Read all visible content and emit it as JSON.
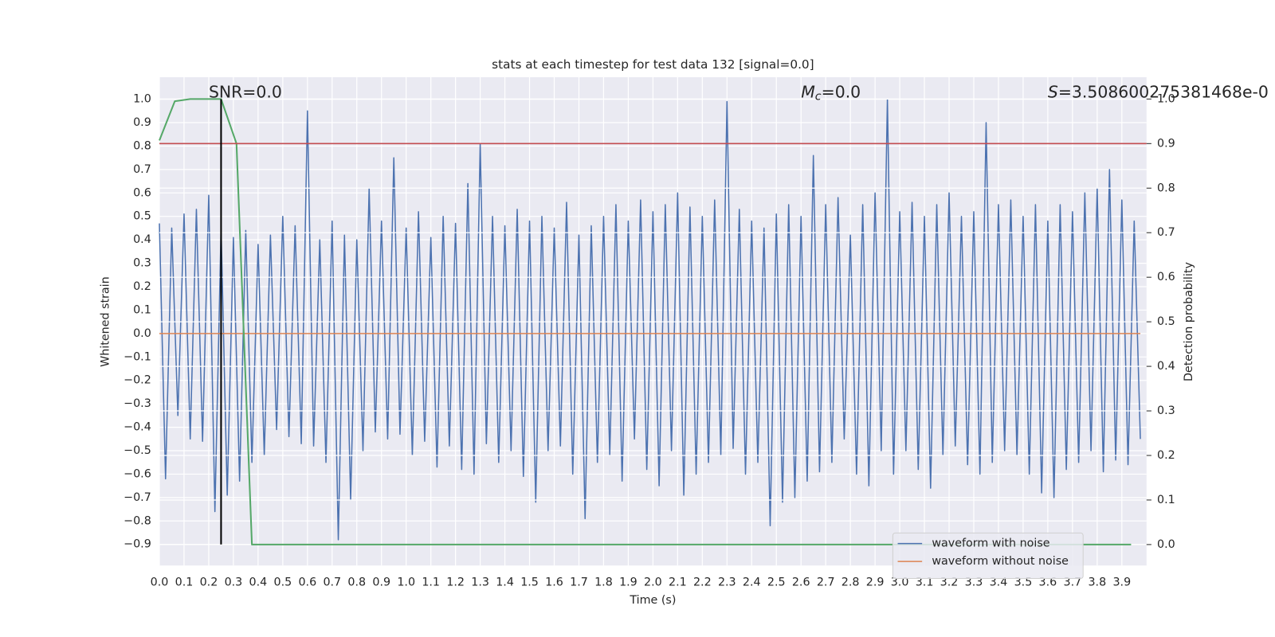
{
  "chart_data": {
    "type": "line",
    "title": "stats at each timestep for test data 132 [signal=0.0]",
    "x_label": "Time (s)",
    "y_label": "Whitened strain",
    "y2_label": "Detection probability",
    "xlim": [
      0,
      4.0
    ],
    "ylim": [
      -0.99,
      1.094
    ],
    "y2lim": [
      -0.047,
      1.049
    ],
    "grid": true,
    "legend": "lower right",
    "xticks": [
      {
        "value": 0,
        "label": "0.0"
      },
      0.1,
      0.2,
      0.3,
      0.4,
      0.5,
      0.6,
      0.7,
      0.8,
      0.9,
      {
        "value": 1,
        "label": "1.0"
      },
      1.1,
      1.2,
      1.3,
      1.4,
      1.5,
      1.6,
      1.7,
      1.8,
      1.9,
      {
        "value": 2,
        "label": "2.0"
      },
      2.1,
      2.2,
      2.3,
      2.4,
      2.5,
      2.6,
      2.7,
      2.8,
      2.9,
      {
        "value": 3,
        "label": "3.0"
      },
      3.1,
      3.2,
      3.3,
      3.4,
      3.5,
      3.6,
      3.7,
      3.8,
      3.9
    ],
    "yticks": [
      {
        "value": -0.9,
        "label": "−0.9"
      },
      {
        "value": -0.8,
        "label": "−0.8"
      },
      {
        "value": -0.7,
        "label": "−0.7"
      },
      {
        "value": -0.6,
        "label": "−0.6"
      },
      {
        "value": -0.5,
        "label": "−0.5"
      },
      {
        "value": -0.4,
        "label": "−0.4"
      },
      {
        "value": -0.3,
        "label": "−0.3"
      },
      {
        "value": -0.2,
        "label": "−0.2"
      },
      {
        "value": -0.1,
        "label": "−0.1"
      },
      {
        "value": 0,
        "label": "0.0"
      },
      0.1,
      0.2,
      0.3,
      0.4,
      0.5,
      0.6,
      0.7,
      0.8,
      0.9,
      {
        "value": 1,
        "label": "1.0"
      }
    ],
    "y2ticks": [
      {
        "value": 0,
        "label": "0.0"
      },
      0.1,
      0.2,
      0.3,
      0.4,
      0.5,
      0.6,
      0.7,
      0.8,
      0.9,
      {
        "value": 1,
        "label": "1.0"
      }
    ],
    "series": [
      {
        "name": "waveform with noise",
        "color": "#4c72b0",
        "x": [
          0,
          0.025,
          0.05,
          0.075,
          0.1,
          0.125,
          0.15,
          0.175,
          0.2,
          0.225,
          0.25,
          0.275,
          0.3,
          0.325,
          0.35,
          0.375,
          0.4,
          0.425,
          0.45,
          0.475,
          0.5,
          0.525,
          0.55,
          0.575,
          0.6,
          0.625,
          0.65,
          0.675,
          0.7,
          0.725,
          0.75,
          0.775,
          0.8,
          0.825,
          0.85,
          0.875,
          0.9,
          0.925,
          0.95,
          0.975,
          1.0,
          1.025,
          1.05,
          1.075,
          1.1,
          1.125,
          1.15,
          1.175,
          1.2,
          1.225,
          1.25,
          1.275,
          1.3,
          1.325,
          1.35,
          1.375,
          1.4,
          1.425,
          1.45,
          1.475,
          1.5,
          1.525,
          1.55,
          1.575,
          1.6,
          1.625,
          1.65,
          1.675,
          1.7,
          1.725,
          1.75,
          1.775,
          1.8,
          1.825,
          1.85,
          1.875,
          1.9,
          1.925,
          1.95,
          1.975,
          2.0,
          2.025,
          2.05,
          2.075,
          2.1,
          2.125,
          2.15,
          2.175,
          2.2,
          2.225,
          2.25,
          2.275,
          2.3,
          2.325,
          2.35,
          2.375,
          2.4,
          2.425,
          2.45,
          2.475,
          2.5,
          2.525,
          2.55,
          2.575,
          2.6,
          2.625,
          2.65,
          2.675,
          2.7,
          2.725,
          2.75,
          2.775,
          2.8,
          2.825,
          2.85,
          2.875,
          2.9,
          2.925,
          2.95,
          2.975,
          3.0,
          3.025,
          3.05,
          3.075,
          3.1,
          3.125,
          3.15,
          3.175,
          3.2,
          3.225,
          3.25,
          3.275,
          3.3,
          3.325,
          3.35,
          3.375,
          3.4,
          3.425,
          3.45,
          3.475,
          3.5,
          3.525,
          3.55,
          3.575,
          3.6,
          3.625,
          3.65,
          3.675,
          3.7,
          3.725,
          3.75,
          3.775,
          3.8,
          3.825,
          3.85,
          3.875,
          3.9,
          3.925,
          3.95,
          3.975
        ],
        "values": [
          0.47,
          -0.62,
          0.45,
          -0.35,
          0.51,
          -0.45,
          0.53,
          -0.46,
          0.59,
          -0.76,
          0.45,
          -0.69,
          0.41,
          -0.63,
          0.44,
          -0.55,
          0.38,
          -0.52,
          0.42,
          -0.41,
          0.5,
          -0.44,
          0.46,
          -0.47,
          0.95,
          -0.48,
          0.4,
          -0.55,
          0.48,
          -0.88,
          0.42,
          -0.71,
          0.4,
          -0.5,
          0.62,
          -0.42,
          0.48,
          -0.45,
          0.75,
          -0.43,
          0.45,
          -0.52,
          0.52,
          -0.46,
          0.41,
          -0.57,
          0.5,
          -0.48,
          0.47,
          -0.58,
          0.64,
          -0.6,
          0.81,
          -0.47,
          0.5,
          -0.55,
          0.46,
          -0.5,
          0.53,
          -0.61,
          0.48,
          -0.72,
          0.5,
          -0.5,
          0.45,
          -0.48,
          0.56,
          -0.6,
          0.42,
          -0.79,
          0.46,
          -0.55,
          0.5,
          -0.52,
          0.55,
          -0.63,
          0.48,
          -0.45,
          0.57,
          -0.58,
          0.52,
          -0.65,
          0.55,
          -0.5,
          0.6,
          -0.69,
          0.54,
          -0.6,
          0.5,
          -0.55,
          0.57,
          -0.52,
          0.99,
          -0.49,
          0.53,
          -0.6,
          0.48,
          -0.55,
          0.45,
          -0.82,
          0.51,
          -0.72,
          0.55,
          -0.7,
          0.5,
          -0.63,
          0.76,
          -0.59,
          0.55,
          -0.55,
          0.58,
          -0.45,
          0.42,
          -0.6,
          0.55,
          -0.65,
          0.6,
          -0.5,
          1.0,
          -0.6,
          0.52,
          -0.5,
          0.56,
          -0.58,
          0.5,
          -0.66,
          0.55,
          -0.52,
          0.6,
          -0.48,
          0.5,
          -0.56,
          0.52,
          -0.6,
          0.9,
          -0.55,
          0.55,
          -0.5,
          0.57,
          -0.52,
          0.5,
          -0.6,
          0.55,
          -0.68,
          0.48,
          -0.7,
          0.55,
          -0.58,
          0.52,
          -0.55,
          0.6,
          -0.5,
          0.62,
          -0.59,
          0.7,
          -0.54,
          0.57,
          -0.56,
          0.48,
          -0.45
        ]
      },
      {
        "name": "waveform without noise",
        "color": "#dd8452",
        "x": [
          0,
          3.975
        ],
        "values": [
          0,
          0
        ]
      },
      {
        "color": "#55a868",
        "axis": "y2",
        "x": [
          0,
          0.0625,
          0.125,
          0.1875,
          0.25,
          0.3125,
          0.375,
          3.9375
        ],
        "values": [
          0.907,
          0.995,
          1.0,
          1.0,
          1.0,
          0.9,
          0,
          0
        ]
      }
    ],
    "hlines": [
      {
        "y": 0.9,
        "axis": "y2",
        "color": "#c44e52"
      }
    ],
    "vlines": [
      {
        "x": 0.25,
        "ymin": -0.9,
        "ymax": 1.0,
        "color": "#000000"
      }
    ],
    "annotations": [
      {
        "text": "SNR=0.0",
        "x": 0.2,
        "y": 1.028
      },
      {
        "symbol": "M",
        "subscript": "c",
        "text": "=0.0",
        "x": 2.6,
        "y": 1.028
      },
      {
        "symbol": "S",
        "text": "=3.508600275381468e-0",
        "x": 3.6,
        "y": 1.028
      }
    ]
  }
}
